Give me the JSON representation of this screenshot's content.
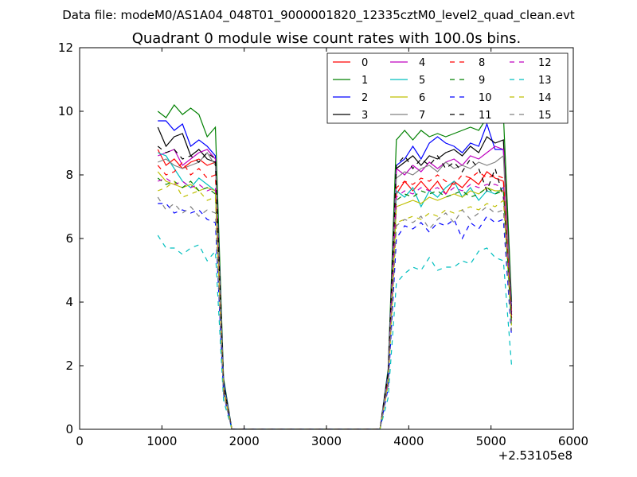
{
  "chart_data": {
    "type": "line",
    "suptitle": "Data file: modeM0/AS1A04_048T01_9000001820_12335cztM0_level2_quad_clean.evt",
    "title": "Quadrant 0 module wise count rates with 100.0s bins.",
    "xlabel": "",
    "ylabel": "",
    "x_offset_label": "+2.53105e8",
    "xlim": [
      0,
      6000
    ],
    "ylim": [
      0,
      12
    ],
    "x_ticks": [
      0,
      1000,
      2000,
      3000,
      4000,
      5000,
      6000
    ],
    "y_ticks": [
      0,
      2,
      4,
      6,
      8,
      10,
      12
    ],
    "x_tick_labels": [
      "0",
      "1000",
      "2000",
      "3000",
      "4000",
      "5000",
      "6000"
    ],
    "y_tick_labels": [
      "0",
      "2",
      "4",
      "6",
      "8",
      "10",
      "12"
    ],
    "legend_position": "top-right",
    "x": [
      950,
      1050,
      1150,
      1250,
      1350,
      1450,
      1550,
      1650,
      1750,
      1850,
      1950,
      2050,
      2150,
      2250,
      2350,
      2450,
      2550,
      2650,
      2750,
      2850,
      2950,
      3050,
      3150,
      3250,
      3350,
      3450,
      3550,
      3650,
      3750,
      3850,
      3950,
      4050,
      4150,
      4250,
      4350,
      4450,
      4550,
      4650,
      4750,
      4850,
      4950,
      5050,
      5150,
      5250
    ],
    "series": [
      {
        "name": "0",
        "color": "#ff0000",
        "dash": false,
        "values": [
          8.8,
          8.3,
          8.5,
          8.2,
          8.4,
          8.5,
          8.3,
          8.4,
          1.2,
          0,
          0,
          0,
          0,
          0,
          0,
          0,
          0,
          0,
          0,
          0,
          0,
          0,
          0,
          0,
          0,
          0,
          0,
          0,
          1.6,
          7.4,
          7.8,
          7.5,
          7.8,
          7.5,
          7.8,
          7.4,
          7.8,
          7.6,
          7.9,
          7.7,
          8.1,
          7.9,
          7.8,
          3.5
        ]
      },
      {
        "name": "1",
        "color": "#008000",
        "dash": false,
        "values": [
          10.0,
          9.8,
          10.2,
          9.9,
          10.1,
          9.9,
          9.2,
          9.5,
          1.6,
          0,
          0,
          0,
          0,
          0,
          0,
          0,
          0,
          0,
          0,
          0,
          0,
          0,
          0,
          0,
          0,
          0,
          0,
          0,
          1.9,
          9.1,
          9.4,
          9.1,
          9.4,
          9.2,
          9.3,
          9.2,
          9.3,
          9.4,
          9.5,
          9.4,
          9.8,
          9.9,
          9.9,
          4.0
        ]
      },
      {
        "name": "2",
        "color": "#0000ff",
        "dash": false,
        "values": [
          9.7,
          9.7,
          9.4,
          9.6,
          8.9,
          9.1,
          8.9,
          8.6,
          1.5,
          0,
          0,
          0,
          0,
          0,
          0,
          0,
          0,
          0,
          0,
          0,
          0,
          0,
          0,
          0,
          0,
          0,
          0,
          0,
          1.8,
          8.3,
          8.5,
          8.9,
          8.5,
          9.0,
          9.2,
          9.0,
          8.9,
          8.7,
          9.0,
          8.9,
          9.6,
          8.8,
          8.8,
          3.8
        ]
      },
      {
        "name": "3",
        "color": "#000000",
        "dash": false,
        "values": [
          9.5,
          8.9,
          9.2,
          9.3,
          8.6,
          8.8,
          8.5,
          8.4,
          1.4,
          0,
          0,
          0,
          0,
          0,
          0,
          0,
          0,
          0,
          0,
          0,
          0,
          0,
          0,
          0,
          0,
          0,
          0,
          0,
          1.7,
          8.2,
          8.4,
          8.6,
          8.3,
          8.6,
          8.5,
          8.7,
          8.8,
          8.6,
          8.9,
          8.7,
          9.2,
          9.0,
          9.1,
          3.7
        ]
      },
      {
        "name": "4",
        "color": "#bf00bf",
        "dash": false,
        "values": [
          8.6,
          8.7,
          8.8,
          8.3,
          8.5,
          8.7,
          8.8,
          8.5,
          1.3,
          0,
          0,
          0,
          0,
          0,
          0,
          0,
          0,
          0,
          0,
          0,
          0,
          0,
          0,
          0,
          0,
          0,
          0,
          0,
          1.7,
          8.2,
          8.0,
          8.3,
          8.1,
          8.4,
          8.2,
          8.4,
          8.5,
          8.3,
          8.6,
          8.5,
          8.7,
          8.9,
          8.8,
          3.6
        ]
      },
      {
        "name": "5",
        "color": "#00bfbf",
        "dash": false,
        "values": [
          8.7,
          8.6,
          8.2,
          7.8,
          7.6,
          7.9,
          7.7,
          7.5,
          1.3,
          0,
          0,
          0,
          0,
          0,
          0,
          0,
          0,
          0,
          0,
          0,
          0,
          0,
          0,
          0,
          0,
          0,
          0,
          0,
          1.6,
          7.5,
          7.3,
          7.6,
          7.0,
          7.5,
          7.3,
          7.6,
          7.8,
          7.3,
          7.6,
          7.2,
          7.5,
          7.4,
          7.6,
          3.3
        ]
      },
      {
        "name": "6",
        "color": "#bfbf00",
        "dash": false,
        "values": [
          8.1,
          7.8,
          7.7,
          7.6,
          7.7,
          7.5,
          7.6,
          7.5,
          1.2,
          0,
          0,
          0,
          0,
          0,
          0,
          0,
          0,
          0,
          0,
          0,
          0,
          0,
          0,
          0,
          0,
          0,
          0,
          0,
          1.5,
          7.0,
          7.1,
          7.2,
          7.1,
          7.3,
          7.2,
          7.3,
          7.4,
          7.3,
          7.5,
          7.4,
          7.6,
          7.5,
          7.5,
          3.4
        ]
      },
      {
        "name": "7",
        "color": "#808080",
        "dash": false,
        "values": [
          8.4,
          8.5,
          8.3,
          8.2,
          8.3,
          8.4,
          8.7,
          8.3,
          1.4,
          0,
          0,
          0,
          0,
          0,
          0,
          0,
          0,
          0,
          0,
          0,
          0,
          0,
          0,
          0,
          0,
          0,
          0,
          0,
          1.7,
          7.9,
          8.1,
          8.0,
          8.2,
          8.3,
          8.1,
          8.4,
          8.2,
          8.3,
          8.2,
          8.4,
          8.3,
          8.4,
          8.6,
          3.6
        ]
      },
      {
        "name": "8",
        "color": "#ff0000",
        "dash": true,
        "values": [
          8.3,
          8.0,
          8.1,
          8.4,
          8.0,
          8.2,
          7.9,
          8.0,
          1.3,
          0,
          0,
          0,
          0,
          0,
          0,
          0,
          0,
          0,
          0,
          0,
          0,
          0,
          0,
          0,
          0,
          0,
          0,
          0,
          1.6,
          7.6,
          7.8,
          7.7,
          7.9,
          7.8,
          8.0,
          7.8,
          7.7,
          8.0,
          7.9,
          8.1,
          7.9,
          8.0,
          7.9,
          3.5
        ]
      },
      {
        "name": "9",
        "color": "#008000",
        "dash": true,
        "values": [
          7.9,
          7.7,
          7.8,
          7.6,
          7.8,
          7.5,
          7.6,
          7.4,
          1.2,
          0,
          0,
          0,
          0,
          0,
          0,
          0,
          0,
          0,
          0,
          0,
          0,
          0,
          0,
          0,
          0,
          0,
          0,
          0,
          1.5,
          7.2,
          7.4,
          7.3,
          7.5,
          7.4,
          7.5,
          7.3,
          7.4,
          7.5,
          7.3,
          7.4,
          7.6,
          7.4,
          7.5,
          3.3
        ]
      },
      {
        "name": "10",
        "color": "#0000ff",
        "dash": true,
        "values": [
          7.1,
          7.1,
          6.8,
          6.9,
          6.8,
          6.9,
          6.6,
          6.5,
          1.1,
          0,
          0,
          0,
          0,
          0,
          0,
          0,
          0,
          0,
          0,
          0,
          0,
          0,
          0,
          0,
          0,
          0,
          0,
          0,
          1.3,
          6.0,
          6.4,
          6.3,
          6.5,
          6.2,
          6.5,
          6.4,
          6.6,
          6.0,
          6.5,
          6.3,
          6.7,
          6.5,
          6.6,
          2.9
        ]
      },
      {
        "name": "11",
        "color": "#000000",
        "dash": true,
        "values": [
          8.9,
          8.7,
          8.8,
          8.5,
          8.6,
          8.4,
          8.7,
          8.5,
          1.4,
          0,
          0,
          0,
          0,
          0,
          0,
          0,
          0,
          0,
          0,
          0,
          0,
          0,
          0,
          0,
          0,
          0,
          0,
          0,
          1.8,
          8.3,
          8.6,
          8.2,
          8.5,
          8.3,
          8.6,
          8.2,
          8.4,
          8.1,
          8.5,
          8.2,
          7.5,
          8.2,
          7.3,
          3.6
        ]
      },
      {
        "name": "12",
        "color": "#bf00bf",
        "dash": true,
        "values": [
          7.8,
          7.9,
          7.7,
          7.8,
          7.6,
          7.7,
          7.5,
          7.6,
          1.2,
          0,
          0,
          0,
          0,
          0,
          0,
          0,
          0,
          0,
          0,
          0,
          0,
          0,
          0,
          0,
          0,
          0,
          0,
          0,
          1.5,
          7.3,
          7.5,
          7.4,
          7.6,
          7.5,
          7.6,
          7.4,
          7.6,
          7.5,
          7.7,
          7.6,
          7.7,
          7.7,
          7.6,
          3.4
        ]
      },
      {
        "name": "13",
        "color": "#00bfbf",
        "dash": true,
        "values": [
          6.1,
          5.7,
          5.7,
          5.5,
          5.7,
          5.8,
          5.3,
          5.6,
          0.9,
          0,
          0,
          0,
          0,
          0,
          0,
          0,
          0,
          0,
          0,
          0,
          0,
          0,
          0,
          0,
          0,
          0,
          0,
          0,
          1.0,
          4.6,
          4.9,
          5.1,
          5.0,
          5.4,
          5.0,
          5.1,
          5.1,
          5.3,
          5.2,
          5.6,
          5.7,
          5.4,
          5.3,
          2.0
        ]
      },
      {
        "name": "14",
        "color": "#bfbf00",
        "dash": true,
        "values": [
          7.5,
          7.6,
          7.8,
          7.3,
          7.4,
          7.5,
          7.2,
          7.3,
          1.2,
          0,
          0,
          0,
          0,
          0,
          0,
          0,
          0,
          0,
          0,
          0,
          0,
          0,
          0,
          0,
          0,
          0,
          0,
          0,
          1.4,
          6.5,
          6.6,
          6.7,
          6.6,
          6.8,
          6.7,
          6.9,
          6.8,
          6.9,
          7.0,
          6.9,
          7.1,
          7.0,
          7.2,
          3.2
        ]
      },
      {
        "name": "15",
        "color": "#808080",
        "dash": true,
        "values": [
          7.3,
          6.9,
          7.1,
          6.8,
          7.0,
          6.7,
          6.9,
          6.8,
          1.1,
          0,
          0,
          0,
          0,
          0,
          0,
          0,
          0,
          0,
          0,
          0,
          0,
          0,
          0,
          0,
          0,
          0,
          0,
          0,
          1.4,
          6.4,
          6.6,
          6.5,
          6.7,
          6.3,
          6.6,
          6.8,
          6.5,
          6.9,
          6.6,
          6.8,
          7.0,
          6.8,
          6.9,
          3.1
        ]
      }
    ]
  }
}
